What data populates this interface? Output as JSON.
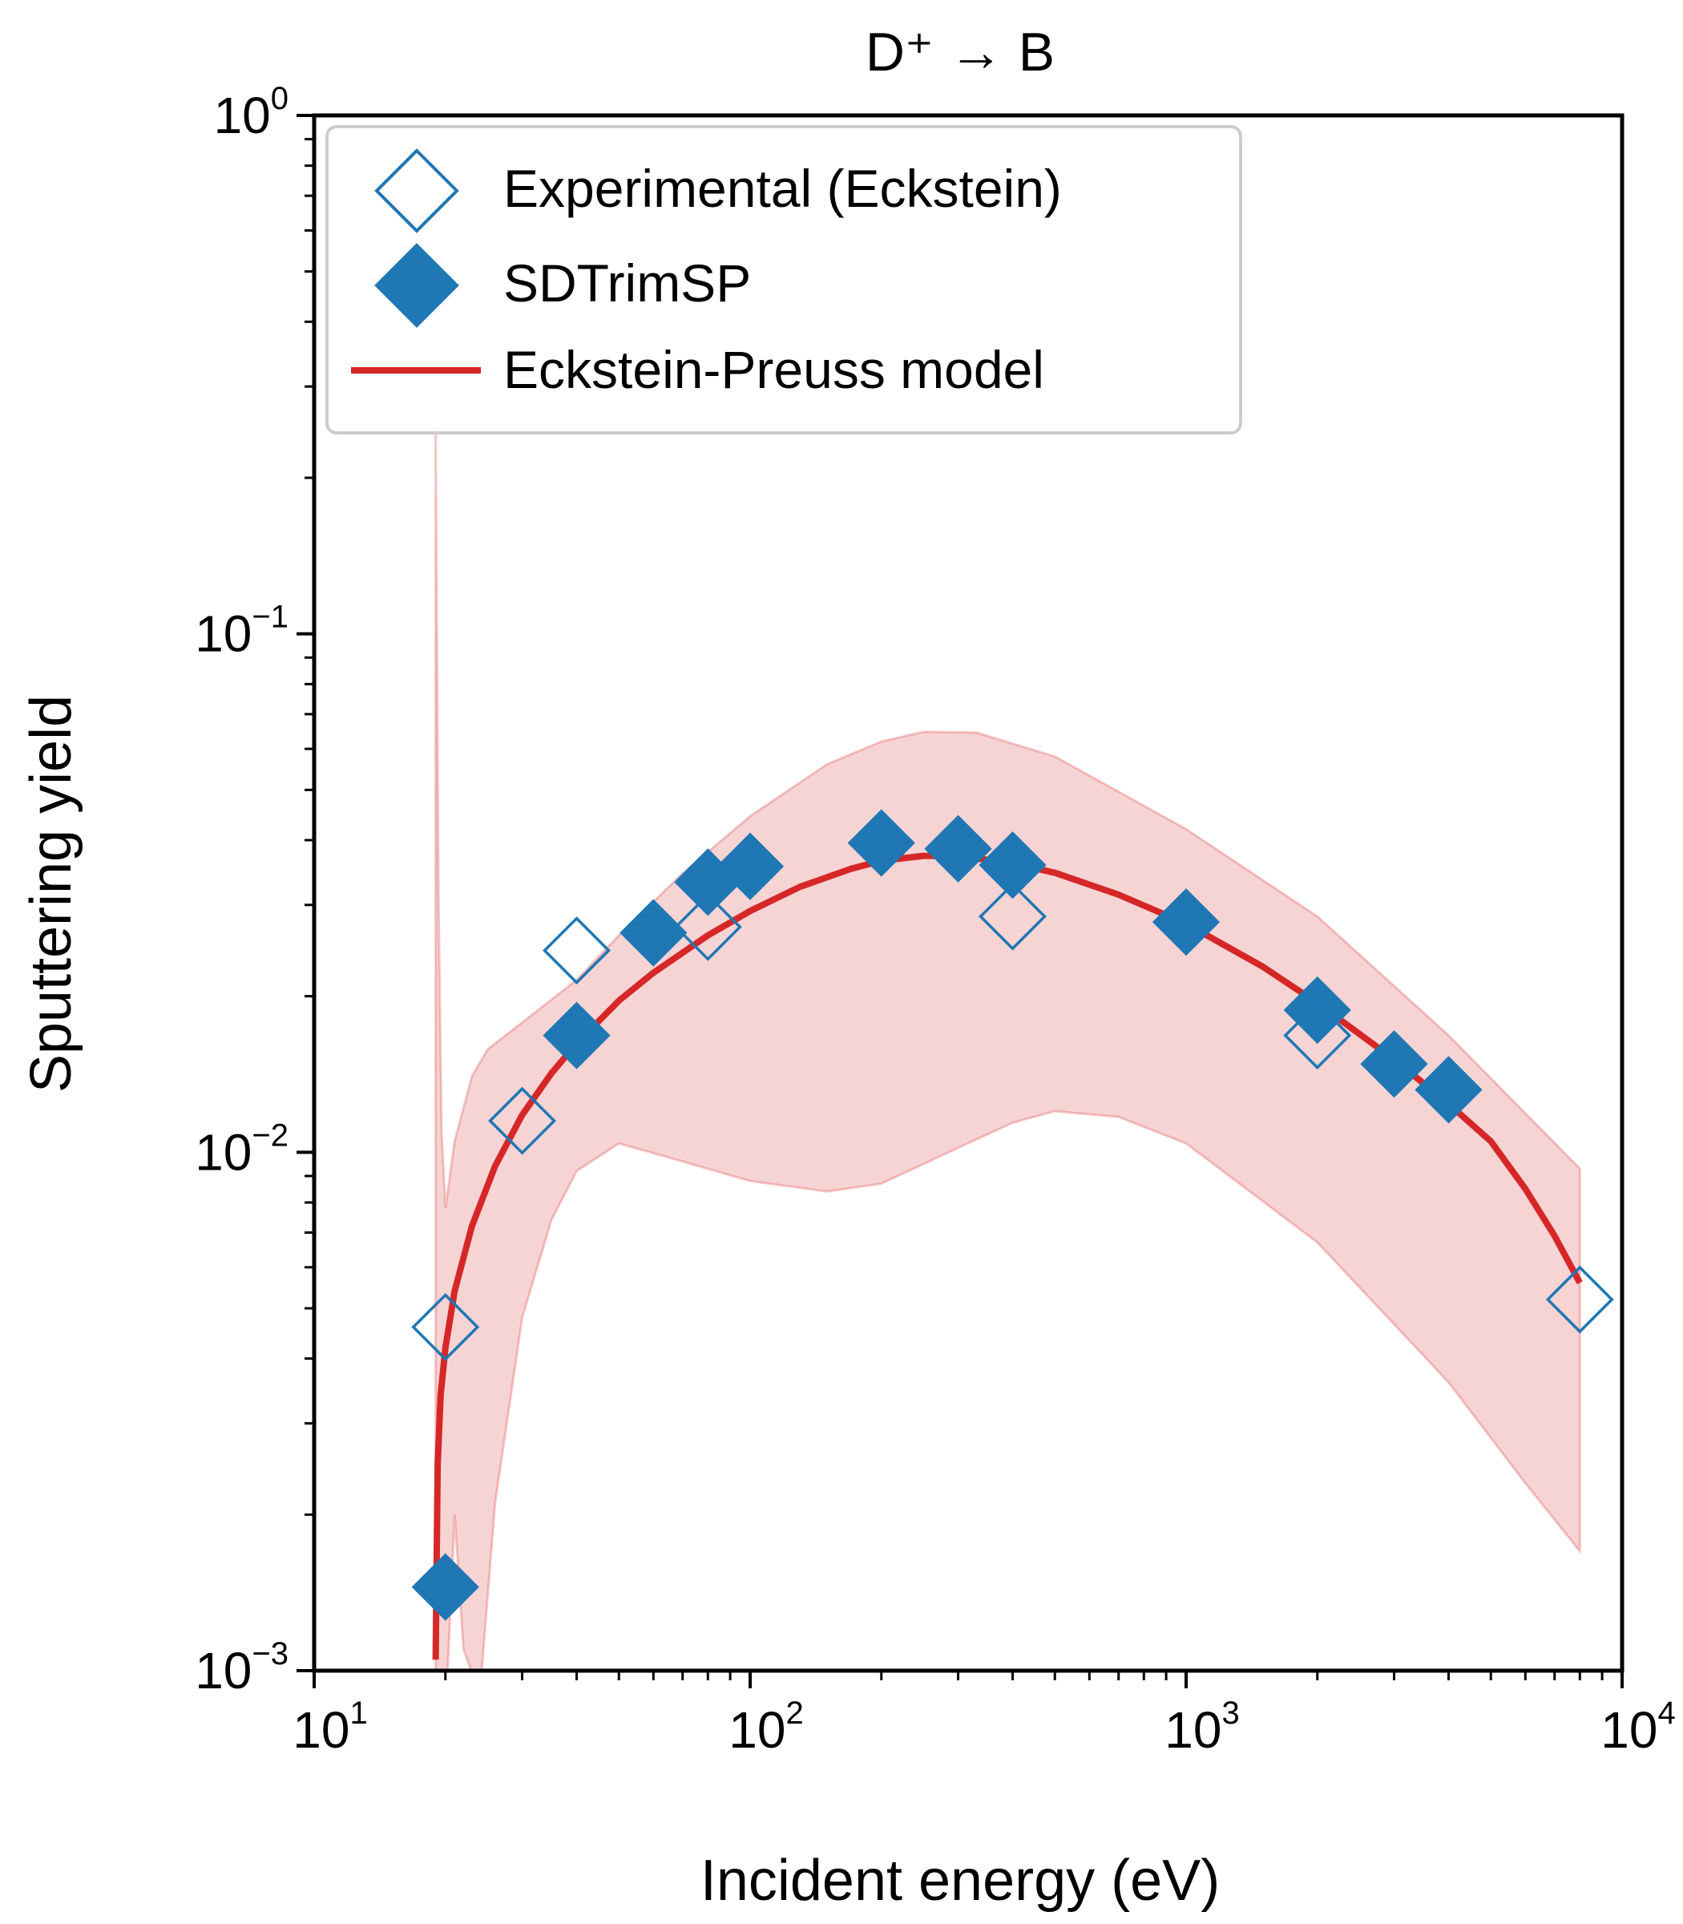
{
  "chart_data": {
    "type": "scatter",
    "title": "D⁺ → B",
    "xlabel": "Incident energy (eV)",
    "ylabel": "Sputtering yield",
    "xscale": "log",
    "yscale": "log",
    "xlim": [
      10,
      10000
    ],
    "ylim": [
      0.001,
      1
    ],
    "x_ticks": [
      {
        "base": "10",
        "exp": "1",
        "value": 10
      },
      {
        "base": "10",
        "exp": "2",
        "value": 100
      },
      {
        "base": "10",
        "exp": "3",
        "value": 1000
      },
      {
        "base": "10",
        "exp": "4",
        "value": 10000
      }
    ],
    "y_ticks": [
      {
        "base": "10",
        "exp": "−3",
        "value": 0.001
      },
      {
        "base": "10",
        "exp": "−2",
        "value": 0.01
      },
      {
        "base": "10",
        "exp": "−1",
        "value": 0.1
      },
      {
        "base": "10",
        "exp": "0",
        "value": 1
      }
    ],
    "grid": false,
    "legend_position": "top-left",
    "series": [
      {
        "name": "Experimental (Eckstein)",
        "kind": "scatter",
        "marker": "open-diamond",
        "color": "#1f77b4",
        "points": [
          {
            "x": 20,
            "y": 0.0046
          },
          {
            "x": 30,
            "y": 0.0115
          },
          {
            "x": 40,
            "y": 0.0245
          },
          {
            "x": 80,
            "y": 0.0272
          },
          {
            "x": 400,
            "y": 0.0285
          },
          {
            "x": 2000,
            "y": 0.0168
          },
          {
            "x": 8000,
            "y": 0.0052
          }
        ]
      },
      {
        "name": "SDTrimSP",
        "kind": "scatter",
        "marker": "filled-diamond",
        "color": "#1f77b4",
        "points": [
          {
            "x": 20,
            "y": 0.00145
          },
          {
            "x": 40,
            "y": 0.0168
          },
          {
            "x": 60,
            "y": 0.0265
          },
          {
            "x": 80,
            "y": 0.0332
          },
          {
            "x": 100,
            "y": 0.0356
          },
          {
            "x": 200,
            "y": 0.0395
          },
          {
            "x": 300,
            "y": 0.0385
          },
          {
            "x": 400,
            "y": 0.0358
          },
          {
            "x": 1000,
            "y": 0.0278
          },
          {
            "x": 2000,
            "y": 0.0188
          },
          {
            "x": 3000,
            "y": 0.0148
          },
          {
            "x": 4000,
            "y": 0.0132
          }
        ]
      },
      {
        "name": "Eckstein-Preuss model",
        "kind": "line",
        "color": "#d62728",
        "points": [
          {
            "x": 19,
            "y": 0.00105
          },
          {
            "x": 19.2,
            "y": 0.0025
          },
          {
            "x": 19.5,
            "y": 0.0034
          },
          {
            "x": 20,
            "y": 0.0042
          },
          {
            "x": 21,
            "y": 0.0054
          },
          {
            "x": 23,
            "y": 0.0072
          },
          {
            "x": 26,
            "y": 0.0094
          },
          {
            "x": 30,
            "y": 0.0118
          },
          {
            "x": 35,
            "y": 0.0142
          },
          {
            "x": 40,
            "y": 0.0162
          },
          {
            "x": 50,
            "y": 0.0196
          },
          {
            "x": 60,
            "y": 0.0222
          },
          {
            "x": 80,
            "y": 0.0262
          },
          {
            "x": 100,
            "y": 0.0292
          },
          {
            "x": 130,
            "y": 0.0325
          },
          {
            "x": 170,
            "y": 0.0352
          },
          {
            "x": 200,
            "y": 0.0365
          },
          {
            "x": 250,
            "y": 0.0373
          },
          {
            "x": 300,
            "y": 0.0373
          },
          {
            "x": 400,
            "y": 0.0361
          },
          {
            "x": 500,
            "y": 0.0346
          },
          {
            "x": 700,
            "y": 0.0314
          },
          {
            "x": 1000,
            "y": 0.0276
          },
          {
            "x": 1500,
            "y": 0.0228
          },
          {
            "x": 2000,
            "y": 0.0194
          },
          {
            "x": 3000,
            "y": 0.0151
          },
          {
            "x": 4000,
            "y": 0.0124
          },
          {
            "x": 5000,
            "y": 0.0105
          },
          {
            "x": 6000,
            "y": 0.0085
          },
          {
            "x": 7000,
            "y": 0.0069
          },
          {
            "x": 8000,
            "y": 0.0056
          }
        ]
      }
    ],
    "uncertainty_band": {
      "color": "#d62728",
      "upper": [
        {
          "x": 19,
          "y": 0.25
        },
        {
          "x": 19.3,
          "y": 0.03
        },
        {
          "x": 19.6,
          "y": 0.011
        },
        {
          "x": 20,
          "y": 0.0078
        },
        {
          "x": 21,
          "y": 0.0105
        },
        {
          "x": 23,
          "y": 0.014
        },
        {
          "x": 25,
          "y": 0.0158
        },
        {
          "x": 30,
          "y": 0.0178
        },
        {
          "x": 40,
          "y": 0.0215
        },
        {
          "x": 50,
          "y": 0.0262
        },
        {
          "x": 70,
          "y": 0.0345
        },
        {
          "x": 100,
          "y": 0.0445
        },
        {
          "x": 150,
          "y": 0.056
        },
        {
          "x": 200,
          "y": 0.062
        },
        {
          "x": 250,
          "y": 0.0647
        },
        {
          "x": 330,
          "y": 0.0645
        },
        {
          "x": 500,
          "y": 0.058
        },
        {
          "x": 1000,
          "y": 0.042
        },
        {
          "x": 2000,
          "y": 0.0285
        },
        {
          "x": 4000,
          "y": 0.0168
        },
        {
          "x": 8000,
          "y": 0.0093
        }
      ],
      "lower": [
        {
          "x": 19,
          "y": 0.0009
        },
        {
          "x": 20,
          "y": 0.0008
        },
        {
          "x": 21,
          "y": 0.002
        },
        {
          "x": 22,
          "y": 0.0011
        },
        {
          "x": 24,
          "y": 0.0009
        },
        {
          "x": 26,
          "y": 0.0021
        },
        {
          "x": 30,
          "y": 0.0048
        },
        {
          "x": 35,
          "y": 0.0074
        },
        {
          "x": 40,
          "y": 0.0092
        },
        {
          "x": 50,
          "y": 0.0104
        },
        {
          "x": 70,
          "y": 0.0096
        },
        {
          "x": 100,
          "y": 0.0088
        },
        {
          "x": 150,
          "y": 0.0084
        },
        {
          "x": 200,
          "y": 0.0087
        },
        {
          "x": 300,
          "y": 0.0102
        },
        {
          "x": 400,
          "y": 0.0114
        },
        {
          "x": 500,
          "y": 0.012
        },
        {
          "x": 700,
          "y": 0.0117
        },
        {
          "x": 1000,
          "y": 0.0104
        },
        {
          "x": 2000,
          "y": 0.0067
        },
        {
          "x": 4000,
          "y": 0.0036
        },
        {
          "x": 6000,
          "y": 0.0023
        },
        {
          "x": 8000,
          "y": 0.0017
        }
      ]
    }
  }
}
